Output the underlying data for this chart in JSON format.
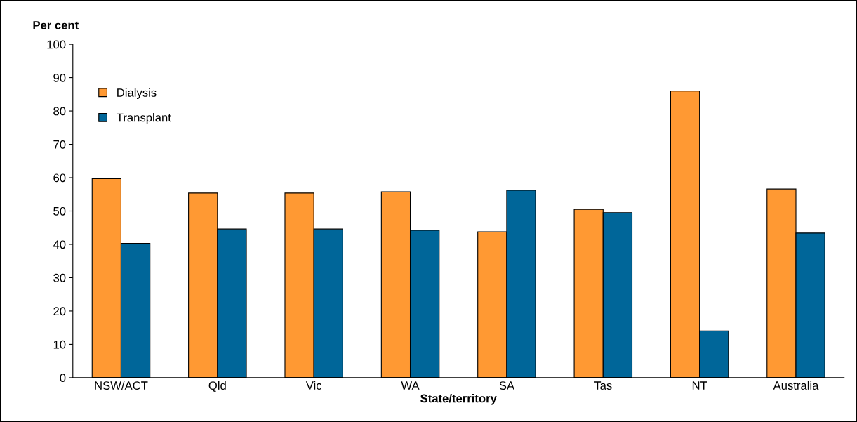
{
  "chart_data": {
    "type": "bar",
    "ylabel": "Per cent",
    "xlabel": "State/territory",
    "categories": [
      "NSW/ACT",
      "Qld",
      "Vic",
      "WA",
      "SA",
      "Tas",
      "NT",
      "Australia"
    ],
    "series": [
      {
        "name": "Dialysis",
        "color": "#ff9933",
        "values": [
          59.7,
          55.4,
          55.4,
          55.8,
          43.8,
          50.5,
          86.0,
          56.6
        ]
      },
      {
        "name": "Transplant",
        "color": "#006699",
        "values": [
          40.3,
          44.6,
          44.6,
          44.2,
          56.2,
          49.5,
          14.0,
          43.4
        ]
      }
    ],
    "ylim": [
      0,
      100
    ],
    "yticks": [
      0,
      10,
      20,
      30,
      40,
      50,
      60,
      70,
      80,
      90,
      100
    ],
    "grid": false,
    "legend": "top left"
  }
}
